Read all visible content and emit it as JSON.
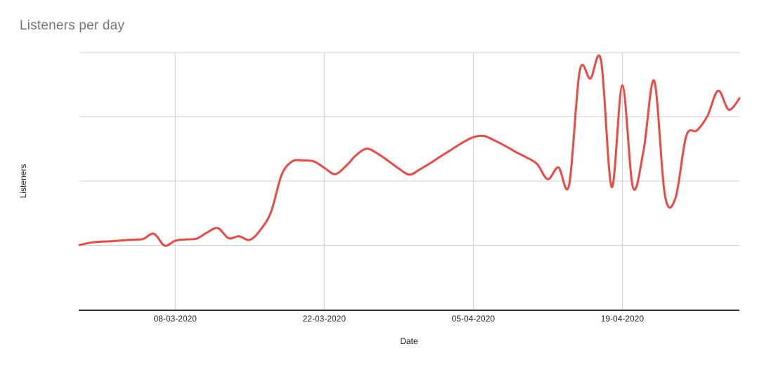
{
  "page": {
    "background_color": "#ffffff"
  },
  "chart": {
    "title": "Listeners per day",
    "title_color": "#757575"
  },
  "chart_data": {
    "type": "line",
    "title": "Listeners per day",
    "xlabel": "Date",
    "ylabel": "Listeners",
    "legend": "none",
    "grid": true,
    "line_smoothing": true,
    "line_color": "#ea4a41",
    "gridline_color": "#d0d0d0",
    "axis_color": "#333333",
    "tick_label_color": "#222222",
    "y_axis_labels_shown": false,
    "ylim": [
      0,
      100
    ],
    "y_grid_step": 25,
    "x_tick_labels": [
      "08-03-2020",
      "22-03-2020",
      "05-04-2020",
      "19-04-2020"
    ],
    "x": [
      "28-02-2020",
      "29-02-2020",
      "01-03-2020",
      "02-03-2020",
      "03-03-2020",
      "04-03-2020",
      "05-03-2020",
      "06-03-2020",
      "07-03-2020",
      "08-03-2020",
      "09-03-2020",
      "10-03-2020",
      "11-03-2020",
      "12-03-2020",
      "13-03-2020",
      "14-03-2020",
      "15-03-2020",
      "16-03-2020",
      "17-03-2020",
      "18-03-2020",
      "19-03-2020",
      "20-03-2020",
      "21-03-2020",
      "22-03-2020",
      "23-03-2020",
      "24-03-2020",
      "25-03-2020",
      "26-03-2020",
      "27-03-2020",
      "28-03-2020",
      "29-03-2020",
      "30-03-2020",
      "31-03-2020",
      "01-04-2020",
      "02-04-2020",
      "03-04-2020",
      "04-04-2020",
      "05-04-2020",
      "06-04-2020",
      "07-04-2020",
      "08-04-2020",
      "09-04-2020",
      "10-04-2020",
      "11-04-2020",
      "12-04-2020",
      "13-04-2020",
      "14-04-2020",
      "15-04-2020",
      "16-04-2020",
      "17-04-2020",
      "18-04-2020",
      "19-04-2020",
      "20-04-2020",
      "21-04-2020",
      "22-04-2020",
      "23-04-2020",
      "24-04-2020",
      "25-04-2020",
      "26-04-2020",
      "27-04-2020",
      "28-04-2020",
      "29-04-2020",
      "30-04-2020"
    ],
    "series": [
      {
        "name": "Listeners",
        "values": [
          25.1,
          26.0,
          26.4,
          26.6,
          26.9,
          27.2,
          27.5,
          29.5,
          24.9,
          26.8,
          27.3,
          27.6,
          30.0,
          31.7,
          27.8,
          28.5,
          27.1,
          31.0,
          38.0,
          52.5,
          57.7,
          58.0,
          57.7,
          55.2,
          52.7,
          55.7,
          60.1,
          62.6,
          60.7,
          57.9,
          54.9,
          52.5,
          54.6,
          57.1,
          59.8,
          62.4,
          65.0,
          67.1,
          67.6,
          65.8,
          63.7,
          61.3,
          59.2,
          56.6,
          50.7,
          55.3,
          48.5,
          92.9,
          89.9,
          96.9,
          47.7,
          87.2,
          47.5,
          62.0,
          89.0,
          44.5,
          43.5,
          67.5,
          69.7,
          75.4,
          85.2,
          77.8,
          82.2
        ]
      }
    ]
  }
}
